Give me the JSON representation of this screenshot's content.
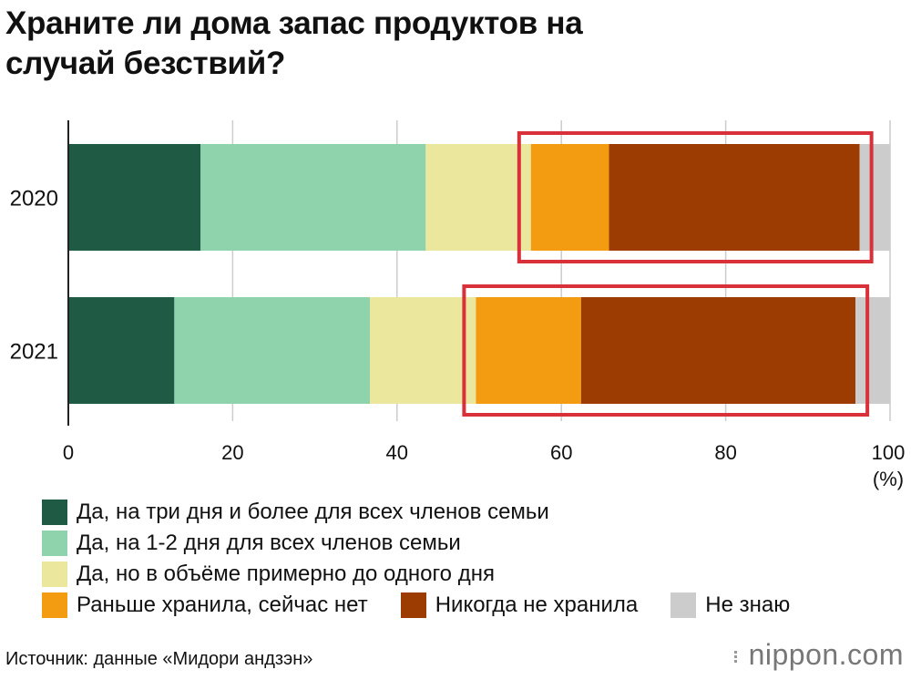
{
  "title_lines": [
    "Храните ли дома запас продуктов на",
    "случай безствий?"
  ],
  "source": "Источник: данные «Мидори андзэн»",
  "logo": "nippon.com",
  "colors": {
    "highlight_box": "#d9313a",
    "grid": "#cccccc",
    "axis": "#222222"
  },
  "chart_data": {
    "type": "bar",
    "orientation": "horizontal",
    "stacked": true,
    "categories": [
      "2020",
      "2021"
    ],
    "series": [
      {
        "name": "Да, на три дня и более для всех членов семьи",
        "color": "#1f5a45",
        "values": [
          16.1,
          12.9
        ]
      },
      {
        "name": "Да, на 1-2 дня для всех членов семьи",
        "color": "#8fd3ac",
        "values": [
          27.4,
          23.8
        ]
      },
      {
        "name": "Да, но в объёме примерно до одного дня",
        "color": "#ebe79c",
        "values": [
          12.8,
          12.9
        ]
      },
      {
        "name": "Раньше хранила, сейчас нет",
        "color": "#f39c12",
        "values": [
          9.5,
          12.8
        ]
      },
      {
        "name": "Никогда не хранила",
        "color": "#9c3b02",
        "values": [
          30.5,
          33.4
        ]
      },
      {
        "name": "Не знаю",
        "color": "#cccccc",
        "values": [
          3.7,
          4.2
        ]
      }
    ],
    "xlim": [
      0,
      100
    ],
    "xticks": [
      "0",
      "20",
      "40",
      "60",
      "80",
      "100"
    ],
    "xlabel": "(%)",
    "grid": true,
    "legend": "bottom",
    "highlight": "Раньше хранила, сейчас нет + Никогда не хранила"
  }
}
